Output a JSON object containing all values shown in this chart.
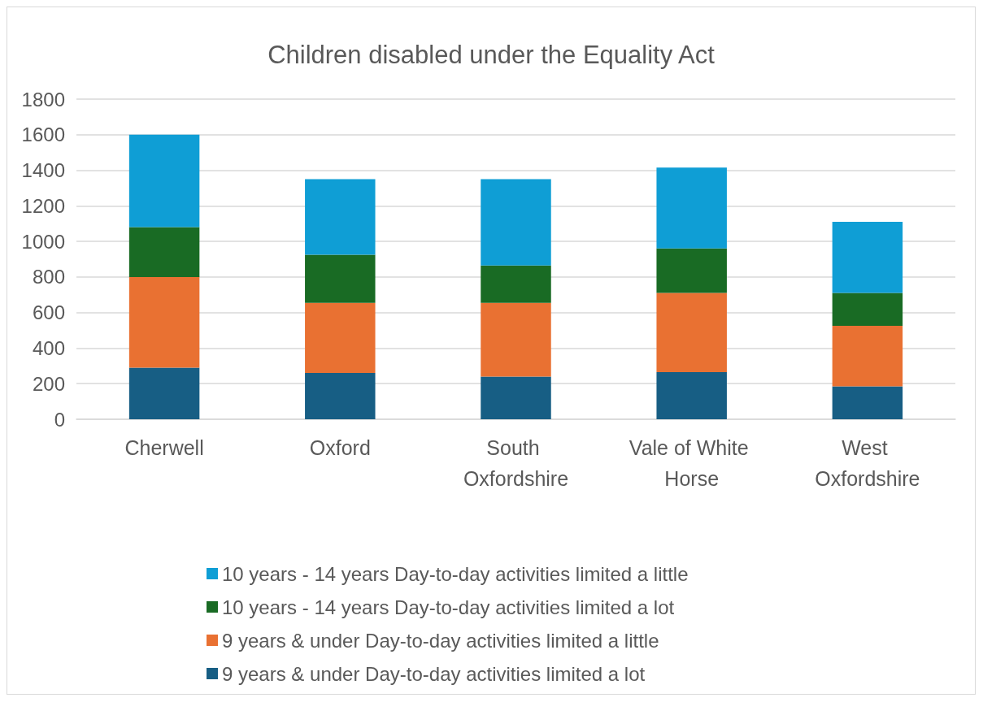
{
  "chart_data": {
    "type": "bar",
    "title": "Children disabled under the Equality Act",
    "categories": [
      "Cherwell",
      "Oxford",
      "South Oxfordshire",
      "Vale of White Horse",
      "West Oxfordshire"
    ],
    "stacked": true,
    "series": [
      {
        "name": "9 years & under Day-to-day activities limited a lot",
        "color": "#175e84",
        "values": [
          290,
          260,
          240,
          265,
          185
        ]
      },
      {
        "name": "9 years & under Day-to-day activities limited a little",
        "color": "#e97132",
        "values": [
          510,
          395,
          415,
          445,
          340
        ]
      },
      {
        "name": "10 years - 14 years Day-to-day activities limited a lot",
        "color": "#196b24",
        "values": [
          280,
          270,
          210,
          250,
          185
        ]
      },
      {
        "name": "10 years - 14 years Day-to-day activities limited a little",
        "color": "#0f9ed5",
        "values": [
          520,
          425,
          485,
          455,
          400
        ]
      }
    ],
    "ylim": [
      0,
      1800
    ],
    "yticks": [
      0,
      200,
      400,
      600,
      800,
      1000,
      1200,
      1400,
      1600,
      1800
    ],
    "grid": "y",
    "legend": "bottom"
  }
}
